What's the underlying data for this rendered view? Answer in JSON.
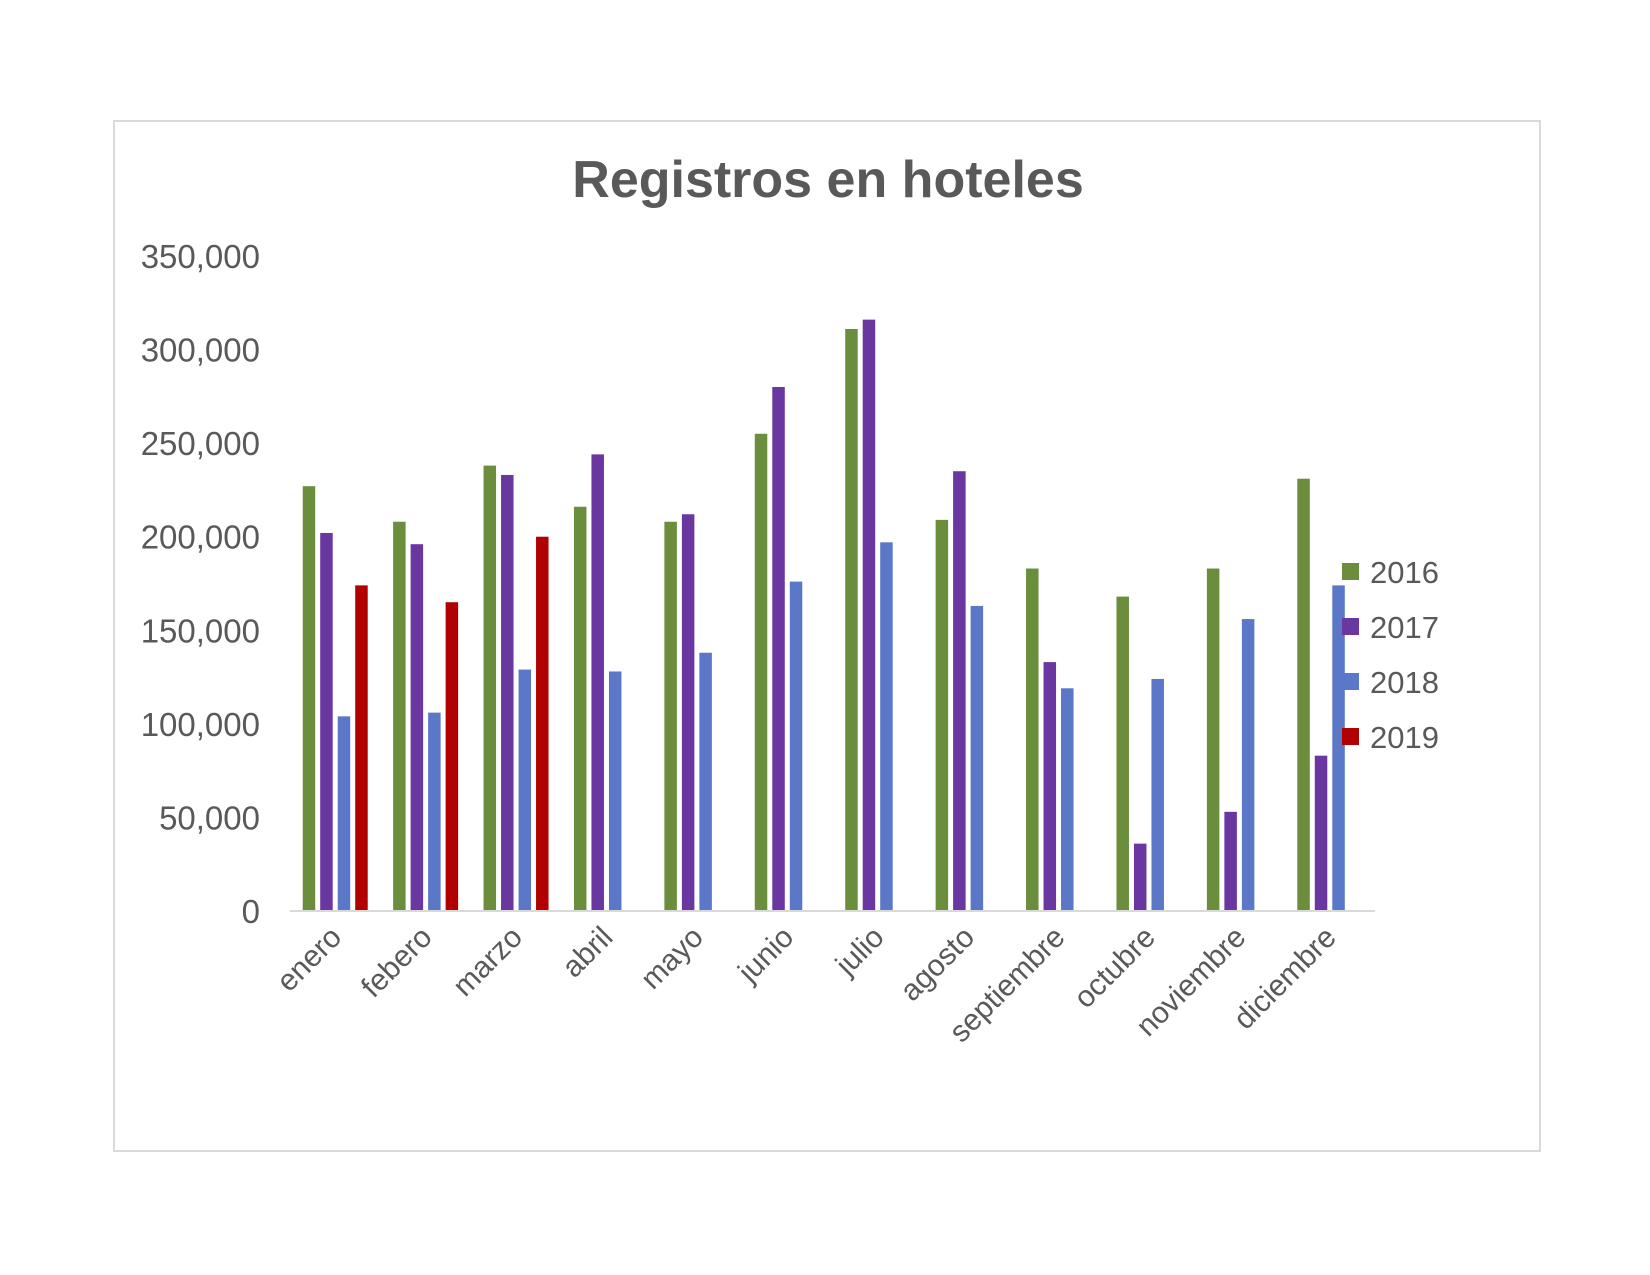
{
  "chart_data": {
    "type": "bar",
    "title": "Registros en hoteles",
    "xlabel": "",
    "ylabel": "",
    "ylim": [
      0,
      350000
    ],
    "yticks": [
      0,
      50000,
      100000,
      150000,
      200000,
      250000,
      300000,
      350000
    ],
    "ytick_labels": [
      "0",
      "50,000",
      "100,000",
      "150,000",
      "200,000",
      "250,000",
      "300,000",
      "350,000"
    ],
    "grid": false,
    "legend_position": "right",
    "categories": [
      "enero",
      "febero",
      "marzo",
      "abril",
      "mayo",
      "junio",
      "julio",
      "agosto",
      "septiembre",
      "octubre",
      "noviembre",
      "diciembre"
    ],
    "series": [
      {
        "name": "2016",
        "color": "#6a8e3c",
        "values": [
          227000,
          208000,
          238000,
          216000,
          208000,
          255000,
          311000,
          209000,
          183000,
          168000,
          183000,
          231000
        ]
      },
      {
        "name": "2017",
        "color": "#6a36a0",
        "values": [
          202000,
          196000,
          233000,
          244000,
          212000,
          280000,
          316000,
          235000,
          133000,
          36000,
          53000,
          83000
        ]
      },
      {
        "name": "2018",
        "color": "#5b78c8",
        "values": [
          104000,
          106000,
          129000,
          128000,
          138000,
          176000,
          197000,
          163000,
          119000,
          124000,
          156000,
          174000
        ]
      },
      {
        "name": "2019",
        "color": "#b00000",
        "values": [
          174000,
          165000,
          200000,
          null,
          null,
          null,
          null,
          null,
          null,
          null,
          null,
          null
        ]
      }
    ]
  }
}
